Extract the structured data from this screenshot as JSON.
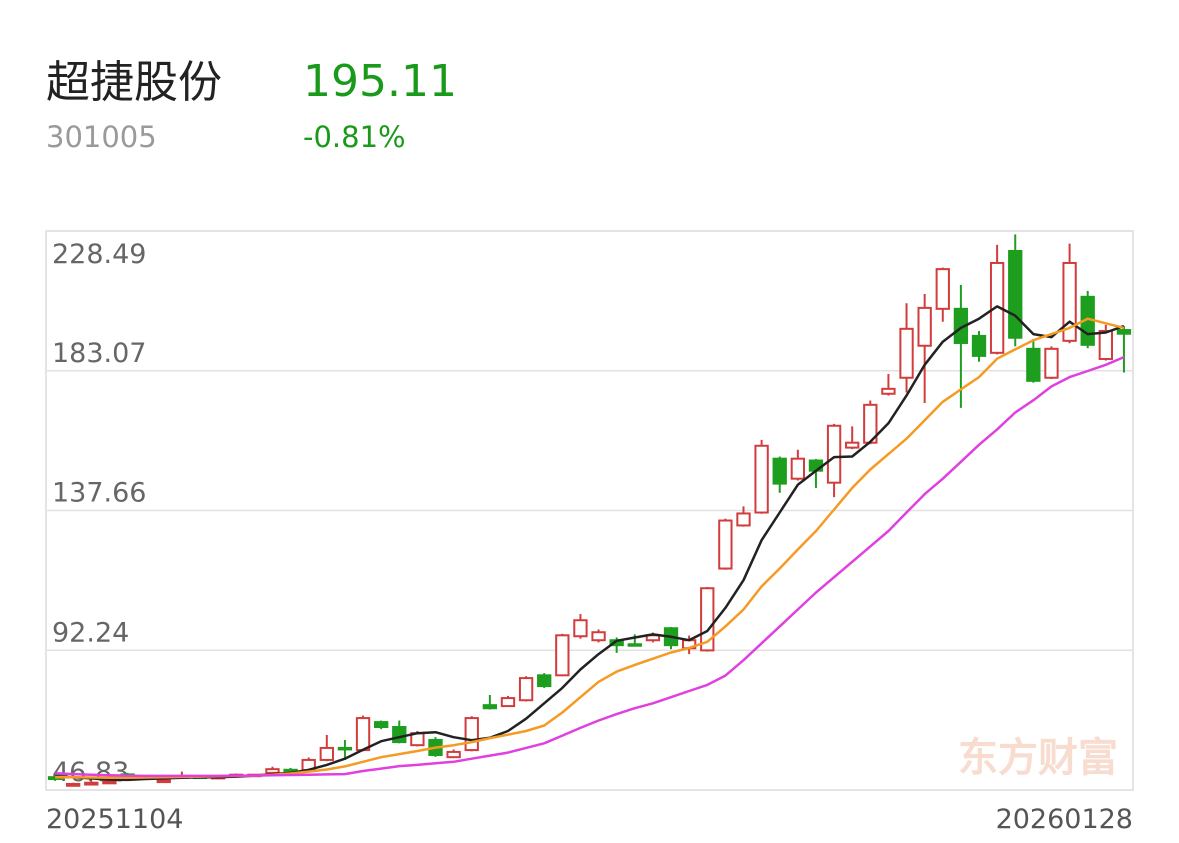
{
  "header": {
    "name": "超捷股份",
    "code": "301005",
    "price": "195.11",
    "change": "-0.81%"
  },
  "watermark": "东方财富",
  "chart_data": {
    "type": "candlestick",
    "categories": [
      "20251104",
      null,
      null,
      null,
      null,
      null,
      null,
      null,
      null,
      null,
      null,
      null,
      null,
      null,
      null,
      null,
      null,
      null,
      null,
      null,
      null,
      null,
      null,
      null,
      null,
      null,
      null,
      null,
      null,
      null,
      null,
      null,
      null,
      null,
      null,
      null,
      null,
      null,
      null,
      null,
      null,
      null,
      null,
      null,
      null,
      null,
      null,
      null,
      null,
      null,
      null,
      null,
      null,
      null,
      null,
      null,
      null,
      null,
      null,
      "20260128"
    ],
    "open": [
      51.0,
      48.2,
      48.6,
      49.0,
      51.9,
      51.2,
      49.4,
      50.8,
      51.2,
      50.6,
      51.2,
      51.4,
      52.4,
      53.4,
      53.3,
      56.6,
      60.5,
      59.8,
      68.9,
      67.3,
      61.4,
      63.1,
      57.5,
      59.8,
      74.4,
      74.1,
      76.0,
      84.1,
      84.1,
      96.8,
      95.5,
      95.5,
      94.2,
      95.5,
      99.4,
      92.9,
      92.2,
      118.8,
      132.8,
      137.0,
      154.5,
      148.0,
      153.9,
      146.7,
      158.1,
      159.7,
      175.6,
      180.8,
      191.2,
      203.2,
      203.2,
      194.4,
      188.9,
      222.0,
      190.2,
      180.8,
      192.8,
      207.1,
      186.9,
      196.3
    ],
    "high": [
      51.6,
      49.2,
      49.8,
      51.0,
      52.4,
      51.6,
      50.6,
      52.8,
      51.6,
      51.6,
      52.2,
      52.0,
      54.4,
      54.0,
      57.4,
      64.7,
      63.1,
      71.0,
      69.4,
      69.4,
      66.0,
      64.0,
      60.0,
      70.8,
      77.7,
      77.4,
      83.8,
      84.8,
      97.6,
      104.0,
      99.0,
      96.4,
      97.4,
      98.0,
      99.8,
      97.0,
      112.8,
      135.0,
      139.0,
      160.6,
      155.2,
      157.4,
      154.4,
      165.8,
      165.0,
      173.4,
      182.0,
      205.0,
      208.0,
      216.6,
      211.0,
      196.0,
      224.0,
      227.4,
      193.4,
      191.0,
      224.4,
      209.0,
      198.0,
      197.6
    ],
    "low": [
      49.8,
      48.0,
      48.4,
      48.8,
      51.0,
      50.6,
      49.2,
      50.6,
      50.4,
      50.4,
      51.0,
      51.2,
      52.2,
      52.6,
      53.0,
      56.2,
      56.6,
      59.4,
      66.6,
      62.0,
      61.0,
      57.6,
      57.2,
      59.4,
      73.0,
      73.8,
      75.6,
      80.0,
      83.8,
      96.0,
      94.8,
      91.4,
      93.6,
      94.8,
      92.6,
      91.0,
      91.8,
      118.4,
      132.4,
      136.6,
      143.4,
      147.4,
      145.0,
      142.0,
      157.6,
      159.2,
      175.0,
      176.0,
      172.6,
      199.0,
      171.0,
      186.0,
      188.4,
      191.0,
      179.2,
      180.4,
      192.0,
      190.4,
      186.4,
      182.5
    ],
    "close": [
      50.4,
      48.8,
      49.2,
      49.6,
      51.4,
      51.0,
      50.0,
      51.4,
      50.8,
      51.2,
      51.8,
      51.8,
      53.6,
      53.0,
      56.6,
      60.5,
      60.2,
      70.2,
      67.3,
      62.4,
      65.3,
      58.2,
      59.2,
      70.2,
      73.4,
      76.7,
      83.2,
      80.6,
      97.1,
      102.0,
      98.1,
      93.9,
      93.9,
      97.1,
      93.9,
      95.5,
      112.4,
      134.4,
      136.7,
      158.7,
      146.4,
      154.5,
      150.6,
      165.2,
      159.7,
      172.0,
      177.2,
      196.7,
      203.5,
      216.1,
      192.1,
      187.9,
      218.1,
      193.8,
      179.8,
      190.2,
      218.1,
      191.5,
      196.0,
      195.11
    ],
    "up_color": "#d23c3c",
    "down_color": "#1e9e1e",
    "series": [
      {
        "color": "#222222",
        "values": [
          51.2,
          51.0,
          50.6,
          50.2,
          50.1,
          50.4,
          50.6,
          50.8,
          51.0,
          51.0,
          51.2,
          51.5,
          52.0,
          52.4,
          53.4,
          55.0,
          57.0,
          59.9,
          62.7,
          64.0,
          65.3,
          65.6,
          64.0,
          63.0,
          63.8,
          66.0,
          70.0,
          75.0,
          80.0,
          86.0,
          91.0,
          95.3,
          96.4,
          97.4,
          96.6,
          95.5,
          98.5,
          106.0,
          115.0,
          128.0,
          137.0,
          146.0,
          150.6,
          155.0,
          155.2,
          160.0,
          166.0,
          175.0,
          185.0,
          192.5,
          197.0,
          200.0,
          204.0,
          201.0,
          195.0,
          194.0,
          199.0,
          195.0,
          195.5,
          197.6
        ]
      },
      {
        "color": "#f59a23",
        "values": [
          51.0,
          51.0,
          50.9,
          50.8,
          50.8,
          50.9,
          51.0,
          51.1,
          51.2,
          51.3,
          51.4,
          51.5,
          51.8,
          52.2,
          52.8,
          53.5,
          54.5,
          56.0,
          57.5,
          58.5,
          59.5,
          60.6,
          61.4,
          62.4,
          63.7,
          64.8,
          66.0,
          67.8,
          72.0,
          77.0,
          82.0,
          85.3,
          87.5,
          89.5,
          91.5,
          93.0,
          95.0,
          100.0,
          105.5,
          113.0,
          118.8,
          125.0,
          131.0,
          138.0,
          145.0,
          151.0,
          156.0,
          161.0,
          167.0,
          173.0,
          177.0,
          181.0,
          187.0,
          190.0,
          193.0,
          195.0,
          197.0,
          200.0,
          198.5,
          197.0
        ]
      },
      {
        "color": "#e040e0",
        "values": [
          52.3,
          52.0,
          51.8,
          51.6,
          51.5,
          51.4,
          51.4,
          51.4,
          51.4,
          51.4,
          51.5,
          51.5,
          51.6,
          51.7,
          51.8,
          51.9,
          52.0,
          53.0,
          53.8,
          54.6,
          55.0,
          55.5,
          56.0,
          57.0,
          58.0,
          59.0,
          60.5,
          62.0,
          64.5,
          67.0,
          69.4,
          71.5,
          73.4,
          75.0,
          77.0,
          79.0,
          81.0,
          84.0,
          89.0,
          94.5,
          100.0,
          105.5,
          111.0,
          116.0,
          121.0,
          126.0,
          131.0,
          137.0,
          143.0,
          148.0,
          153.5,
          159.0,
          164.0,
          169.5,
          173.5,
          178.0,
          181.0,
          183.0,
          185.0,
          187.5
        ]
      }
    ],
    "ylim": [
      46.83,
      228.49
    ],
    "yticks": [
      46.83,
      92.24,
      137.66,
      183.07,
      228.49
    ],
    "grid": true
  }
}
